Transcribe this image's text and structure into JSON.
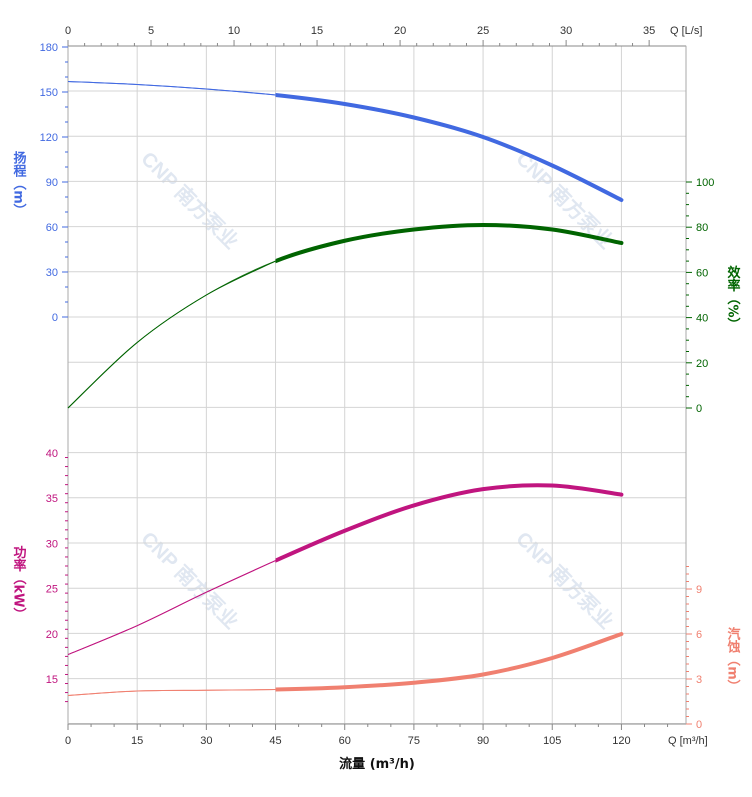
{
  "chart_data": {
    "type": "line",
    "watermark": "CNP 南方泵业",
    "x_axis": {
      "label": "流量 (m³/h)",
      "unit_label": "Q [m³/h]",
      "range": [
        0,
        134
      ],
      "ticks": [
        "0",
        "15",
        "30",
        "45",
        "60",
        "75",
        "90",
        "105",
        "120"
      ]
    },
    "x2_axis": {
      "unit_label": "Q [L/s]",
      "range": [
        0,
        37.22
      ],
      "ticks": [
        "0",
        "5",
        "10",
        "15",
        "20",
        "25",
        "30",
        "35"
      ]
    },
    "head_axis": {
      "label": "扬程（m）",
      "color": "#4169e1",
      "ticks": [
        "180",
        "150",
        "120",
        "90",
        "60",
        "30",
        "0"
      ]
    },
    "efficiency_axis": {
      "label": "效率（%）",
      "color": "#006400",
      "ticks": [
        "100",
        "80",
        "60",
        "40",
        "20",
        "0"
      ]
    },
    "power_axis": {
      "label": "功率（kW）",
      "color": "#c0157f",
      "ticks": [
        "40",
        "35",
        "30",
        "25",
        "20",
        "15"
      ]
    },
    "npsh_axis": {
      "label": "汽蚀（m）",
      "color": "#f08070",
      "ticks": [
        "9",
        "6",
        "3",
        "0"
      ]
    },
    "operating_range": [
      45,
      120
    ],
    "series": [
      {
        "key": "head",
        "axis": "head",
        "color": "#4169e1",
        "x": [
          0,
          15,
          30,
          45,
          60,
          75,
          90,
          105,
          120
        ],
        "y": [
          157,
          155,
          152,
          148,
          142,
          133,
          120,
          101,
          78
        ]
      },
      {
        "key": "efficiency",
        "axis": "efficiency",
        "color": "#006400",
        "x": [
          0,
          15,
          30,
          45,
          60,
          75,
          90,
          105,
          120
        ],
        "y": [
          0,
          29,
          50,
          65,
          74,
          79,
          81,
          79,
          73
        ]
      },
      {
        "key": "power",
        "axis": "power",
        "color": "#c0157f",
        "x": [
          0,
          15,
          30,
          45,
          60,
          75,
          90,
          105,
          120
        ],
        "y": [
          17.7,
          20.9,
          24.6,
          28.1,
          31.4,
          34.2,
          36.0,
          36.4,
          35.4
        ]
      },
      {
        "key": "npsh",
        "axis": "npsh",
        "color": "#f08070",
        "x": [
          0,
          15,
          30,
          45,
          60,
          75,
          90,
          105,
          120
        ],
        "y": [
          1.9,
          2.2,
          2.25,
          2.3,
          2.45,
          2.75,
          3.3,
          4.4,
          6.0
        ]
      }
    ]
  }
}
